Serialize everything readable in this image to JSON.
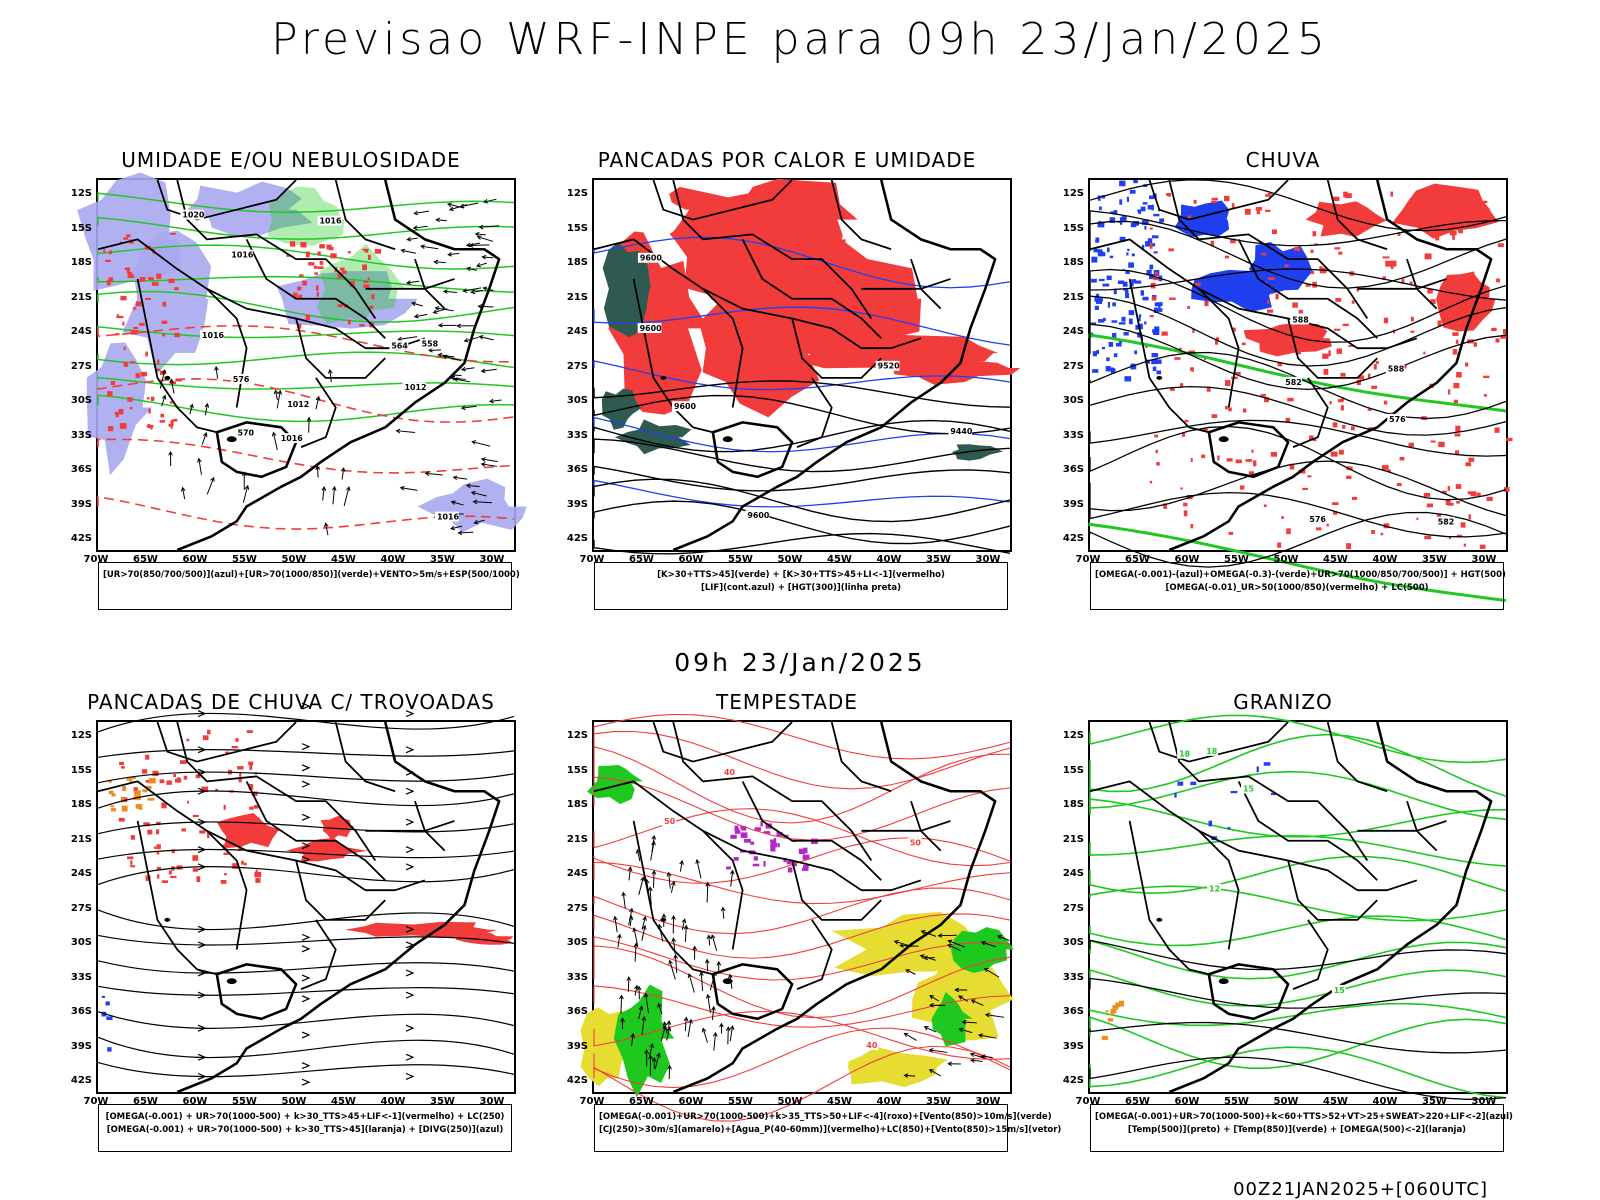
{
  "main_title": "Previsao WRF-INPE  para 09h 23/Jan/2025",
  "mid_title": "09h 23/Jan/2025",
  "footer": "00Z21JAN2025+[060UTC]",
  "lat_labels": [
    "12S",
    "15S",
    "18S",
    "21S",
    "24S",
    "27S",
    "30S",
    "33S",
    "36S",
    "39S",
    "42S"
  ],
  "lon_labels": [
    "70W",
    "65W",
    "60W",
    "55W",
    "50W",
    "45W",
    "40W",
    "35W",
    "30W"
  ],
  "colors": {
    "red": "#f23c3c",
    "green": "#1ec81e",
    "blue": "#2040f0",
    "lavender": "#a9a9f0",
    "darkgreen": "#2e5a50",
    "orange": "#f08c1e",
    "yellow": "#e6dc32",
    "purple": "#b428c8"
  },
  "panels": [
    {
      "title": "UMIDADE E/OU NEBULOSIDADE",
      "legend": [
        "[UR>70(850/700/500)](azul)+[UR>70(1000/850)](verde)+VENTO>5m/s+ESP(500/1000)"
      ],
      "contour_labels": [
        "1012",
        "1016",
        "1020",
        "1012",
        "1016",
        "1016",
        "1016",
        "576",
        "570",
        "564",
        "558",
        "1016"
      ]
    },
    {
      "title": "PANCADAS POR CALOR E UMIDADE",
      "legend": [
        "[K>30+TTS>45](verde) + [K>30+TTS>45+LI<-1](vermelho)",
        "[LIF](cont.azul) + [HGT(300)](linha preta)"
      ],
      "contour_labels": [
        "9600",
        "9600",
        "9600",
        "9520",
        "9440",
        "9600"
      ]
    },
    {
      "title": "CHUVA",
      "legend": [
        "[OMEGA(-0.001)-(azul)+OMEGA(-0.3)-(verde)+UR>70(1000/850/700/500)] + HGT(500)",
        "[OMEGA(-0.01)_UR>50(1000/850)(vermelho) + LC(500)"
      ],
      "contour_labels": [
        "588",
        "582",
        "576",
        "576",
        "588",
        "582"
      ]
    },
    {
      "title": "PANCADAS DE CHUVA C/ TROVOADAS",
      "legend": [
        "[OMEGA(-0.001) + UR>70(1000-500) + k>30_TTS>45+LIF<-1](vermelho) + LC(250)",
        "[OMEGA(-0.001) + UR>70(1000-500) + k>30_TTS>45](laranja) + [DIVG(250)](azul)"
      ],
      "contour_labels": []
    },
    {
      "title": "TEMPESTADE",
      "legend": [
        "[OMEGA(-0.001)+UR>70(1000-500)+k>35_TTS>50+LIF<-4](roxo)+[Vento(850)>10m/s](verde)",
        "[CJ(250)>30m/s](amarelo)+[Agua_P(40-60mm)](vermelho)+LC(850)+[Vento(850)>15m/s](vetor)"
      ],
      "contour_labels": [
        "40",
        "50",
        "40",
        "50"
      ]
    },
    {
      "title": "GRANIZO",
      "legend": [
        "[OMEGA(-0.001)+UR>70(1000-500)+k<60+TTS>52+VT>25+SWEAT>220+LIF<-2](azul)",
        "[Temp(500)](preto) + [Temp(850)](verde) + [OMEGA(500)<-2](laranja)"
      ],
      "contour_labels": [
        "15",
        "18",
        "12",
        "15",
        "18"
      ]
    }
  ]
}
